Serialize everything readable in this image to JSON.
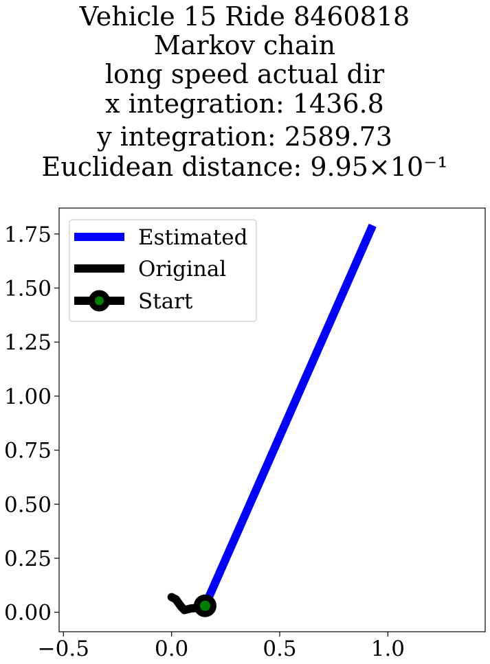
{
  "chart_data": {
    "type": "line",
    "title_lines": [
      "Vehicle 15 Ride 8460818",
      "Markov chain",
      "long speed actual dir",
      "x integration: 1436.8",
      "y integration: 2589.73",
      "Euclidean distance: 9.95×10⁻¹"
    ],
    "xlabel": "",
    "ylabel": "",
    "xlim": [
      -0.52,
      1.45
    ],
    "ylim": [
      -0.09,
      1.87
    ],
    "x_ticks": [
      -0.5,
      0.0,
      0.5,
      1.0
    ],
    "x_tick_labels": [
      "−0.5",
      "0.0",
      "0.5",
      "1.0"
    ],
    "y_ticks": [
      0.0,
      0.25,
      0.5,
      0.75,
      1.0,
      1.25,
      1.5,
      1.75
    ],
    "y_tick_labels": [
      "0.00",
      "0.25",
      "0.50",
      "0.75",
      "1.00",
      "1.25",
      "1.50",
      "1.75"
    ],
    "grid": false,
    "legend_position": "top-left",
    "series": [
      {
        "name": "Estimated",
        "color": "#0000ff",
        "x": [
          0.155,
          0.93
        ],
        "y": [
          0.03,
          1.79
        ]
      },
      {
        "name": "Original",
        "color": "#000000",
        "x": [
          0.0,
          0.02,
          0.045,
          0.06,
          0.09,
          0.12,
          0.155
        ],
        "y": [
          0.07,
          0.06,
          0.025,
          0.01,
          0.018,
          0.02,
          0.03
        ]
      }
    ],
    "start_point": {
      "name": "Start",
      "x": 0.155,
      "y": 0.03,
      "marker_color": "#008000",
      "edge_color": "#000000"
    }
  }
}
